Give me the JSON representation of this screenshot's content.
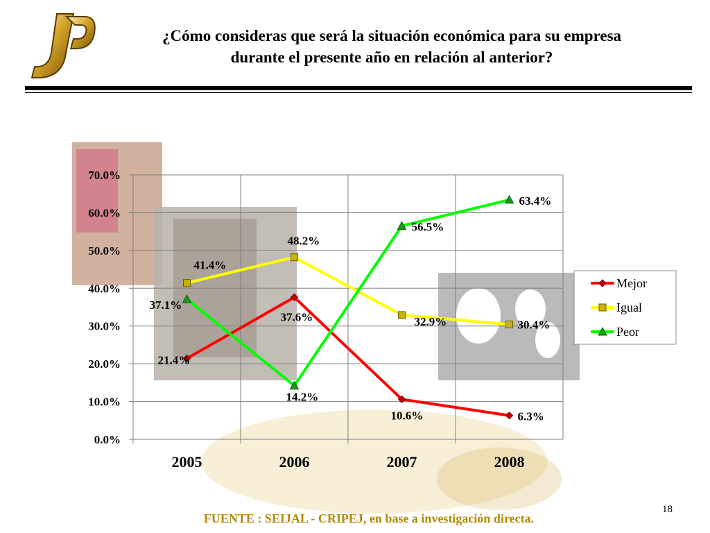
{
  "slide": {
    "title_line1": "¿Cómo consideras que será la situación económica para su empresa",
    "title_line2": "durante el presente año en relación al anterior?",
    "source": "FUENTE :  SEIJAL - CRIPEJ,  en base a investigación directa.",
    "page_number": "18",
    "logo": "jp-monogram-logo"
  },
  "chart_data": {
    "type": "line",
    "title": "",
    "xlabel": "",
    "ylabel": "",
    "categories": [
      "2005",
      "2006",
      "2007",
      "2008"
    ],
    "ylim": [
      0,
      70
    ],
    "yticks": [
      0,
      10,
      20,
      30,
      40,
      50,
      60,
      70
    ],
    "ytick_labels": [
      "0.0%",
      "10.0%",
      "20.0%",
      "30.0%",
      "40.0%",
      "50.0%",
      "60.0%",
      "70.0%"
    ],
    "grid": true,
    "legend_position": "right",
    "series": [
      {
        "name": "Mejor",
        "color": "#ff0000",
        "marker": "diamond",
        "marker_color": "#c00000",
        "values": [
          21.4,
          37.6,
          10.6,
          6.3
        ],
        "labels": [
          "21.4%",
          "37.6%",
          "10.6%",
          "6.3%"
        ]
      },
      {
        "name": "Igual",
        "color": "#ffff00",
        "marker": "square",
        "marker_color": "#c8b400",
        "values": [
          41.4,
          48.2,
          32.9,
          30.4
        ],
        "labels": [
          "41.4%",
          "48.2%",
          "32.9%",
          "30.4%"
        ]
      },
      {
        "name": "Peor",
        "color": "#00ff00",
        "marker": "triangle",
        "marker_color": "#1a9a1a",
        "values": [
          37.1,
          14.2,
          56.5,
          63.4
        ],
        "labels": [
          "37.1%",
          "14.2%",
          "56.5%",
          "63.4%"
        ]
      }
    ]
  }
}
